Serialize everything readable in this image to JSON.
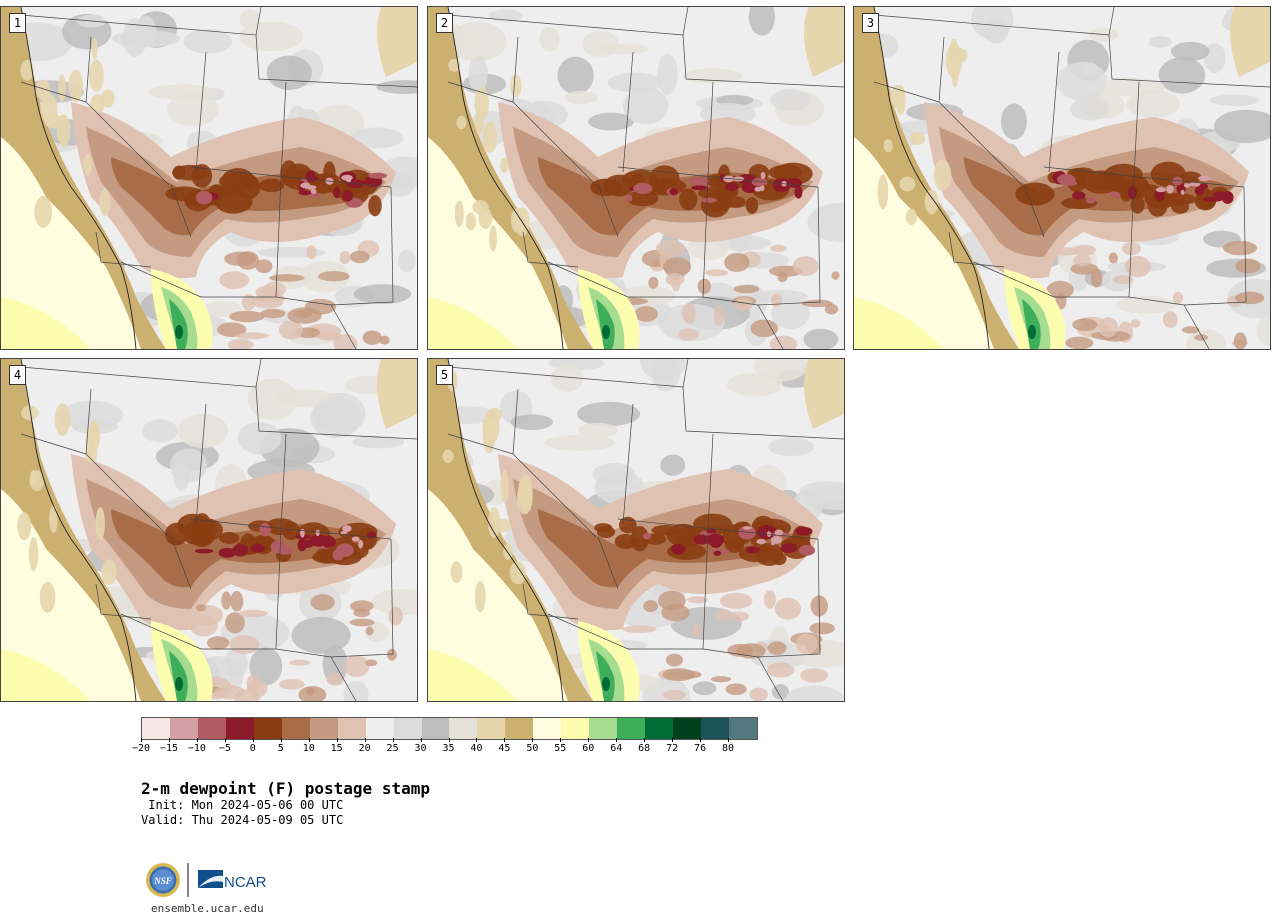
{
  "panels": [
    {
      "label": "1",
      "seed": 11
    },
    {
      "label": "2",
      "seed": 23
    },
    {
      "label": "3",
      "seed": 37
    },
    {
      "label": "4",
      "seed": 41
    },
    {
      "label": "5",
      "seed": 53
    }
  ],
  "colorbar": {
    "colors": [
      "#f7e8e8",
      "#d4a0a4",
      "#b05c62",
      "#8c1a28",
      "#8a3d12",
      "#a86c48",
      "#c49a80",
      "#dfc2b2",
      "#eeeeee",
      "#dcdcdc",
      "#bdbdbd",
      "#e4e2d8",
      "#e6d6ae",
      "#ccb070",
      "#fffde0",
      "#fdfdb0",
      "#a6dc90",
      "#3fae5a",
      "#006b34",
      "#00401c",
      "#1a5258",
      "#53797e"
    ],
    "ticks": [
      "−20",
      "−15",
      "−10",
      "−5",
      "0",
      "5",
      "10",
      "15",
      "20",
      "25",
      "30",
      "35",
      "40",
      "45",
      "50",
      "55",
      "60",
      "64",
      "68",
      "72",
      "76",
      "80"
    ]
  },
  "title": {
    "main": "2-m dewpoint (F) postage stamp",
    "init": " Init: Mon 2024-05-06 00 UTC",
    "valid": "Valid: Thu 2024-05-09 05 UTC"
  },
  "logo": {
    "nsf": "NSF",
    "ncar": "NCAR"
  },
  "site": "ensemble.ucar.edu"
}
